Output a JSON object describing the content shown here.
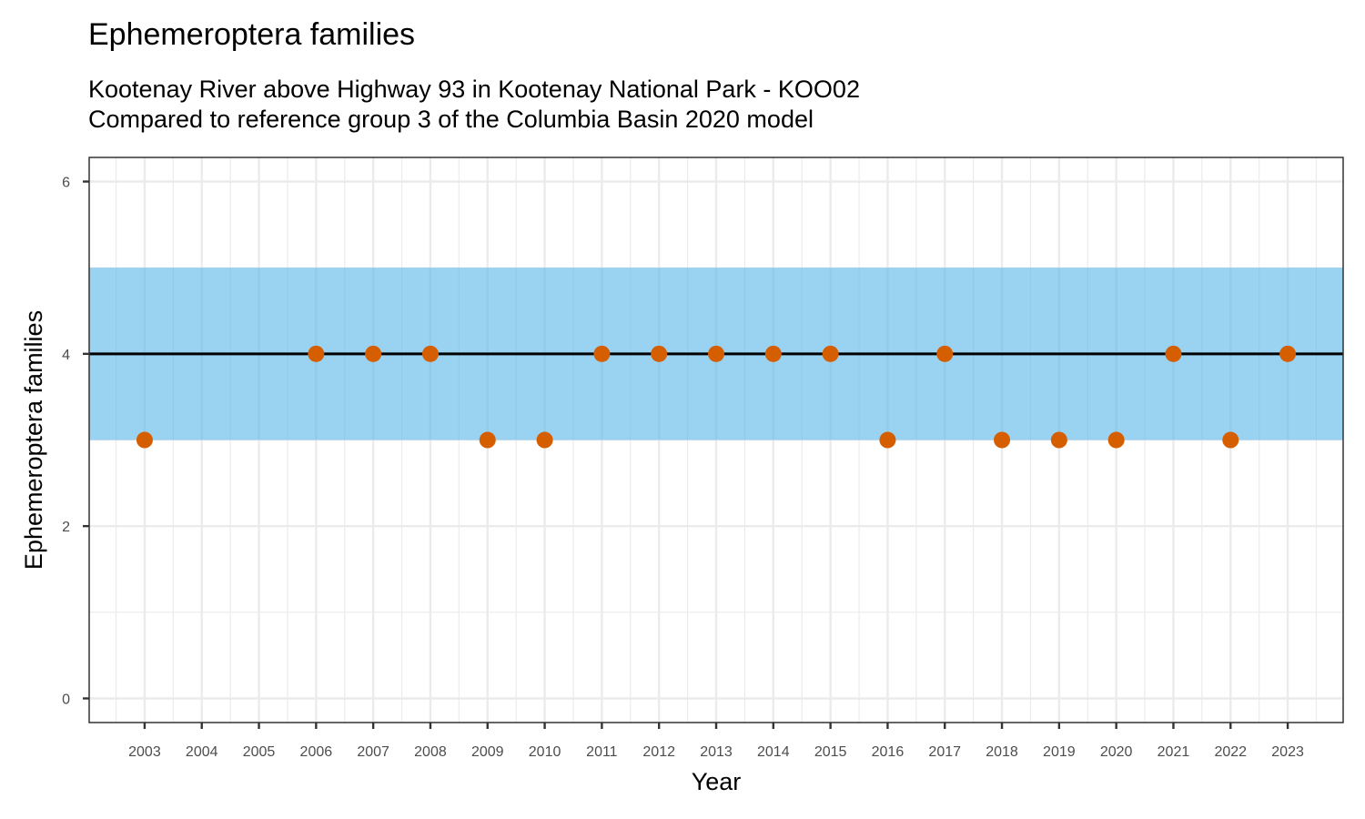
{
  "chart_data": {
    "type": "scatter",
    "title": "Ephemeroptera families",
    "subtitle_lines": [
      "Kootenay River above Highway 93 in Kootenay National Park - KOO02",
      "Compared to reference group 3 of the Columbia Basin 2020 model"
    ],
    "xlabel": "Year",
    "ylabel": "Ephemeroptera families",
    "x_ticks": [
      "2003",
      "2004",
      "2005",
      "2006",
      "2007",
      "2008",
      "2009",
      "2010",
      "2011",
      "2012",
      "2013",
      "2014",
      "2015",
      "2016",
      "2017",
      "2018",
      "2019",
      "2020",
      "2021",
      "2022",
      "2023"
    ],
    "y_ticks": [
      "0",
      "2",
      "4",
      "6"
    ],
    "xlim": [
      2002.03,
      2023.97
    ],
    "ylim": [
      -0.28,
      6.28
    ],
    "reference_band": {
      "low": 3,
      "high": 5,
      "color": "#56B4E9"
    },
    "reference_line": {
      "value": 4,
      "color": "#000000"
    },
    "series": [
      {
        "color": "#D55E00",
        "x": [
          2003,
          2006,
          2007,
          2008,
          2009,
          2010,
          2011,
          2012,
          2013,
          2014,
          2015,
          2016,
          2017,
          2018,
          2019,
          2020,
          2021,
          2022,
          2023
        ],
        "y": [
          3,
          4,
          4,
          4,
          3,
          3,
          4,
          4,
          4,
          4,
          4,
          3,
          4,
          3,
          3,
          3,
          4,
          3,
          4
        ]
      }
    ],
    "grid": true,
    "legend": "none"
  }
}
